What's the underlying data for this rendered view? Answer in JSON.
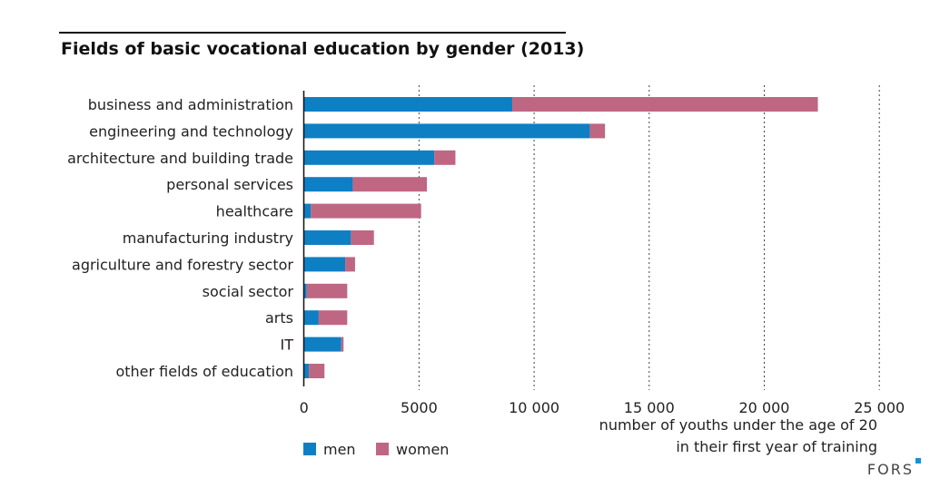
{
  "chart_data": {
    "type": "bar",
    "orientation": "horizontal",
    "stacked": true,
    "title": "Fields of basic vocational education by gender (2013)",
    "xlabel": [
      "number of youths under the age of 20",
      "in their first year of training"
    ],
    "ylabel": "",
    "xlim": [
      0,
      25000
    ],
    "xticks": [
      0,
      5000,
      10000,
      15000,
      20000,
      25000
    ],
    "xtick_labels": [
      "0",
      "5000",
      "10 000",
      "15 000",
      "20 000",
      "25 000"
    ],
    "grid": "vertical dotted",
    "legend_position": "bottom-left",
    "categories": [
      "business and administration",
      "engineering and technology",
      "architecture and building trade",
      "personal services",
      "healthcare",
      "manufacturing industry",
      "agriculture and forestry sector",
      "social sector",
      "arts",
      "IT",
      "other fields of education"
    ],
    "series": [
      {
        "name": "men",
        "color": "#0f7fc4",
        "values": [
          9050,
          12420,
          5660,
          2120,
          300,
          2040,
          1790,
          120,
          640,
          1620,
          220
        ]
      },
      {
        "name": "women",
        "color": "#bf6683",
        "values": [
          13280,
          660,
          920,
          3220,
          4790,
          1000,
          430,
          1760,
          1240,
          100,
          670
        ]
      }
    ]
  },
  "branding": {
    "logo": "FORS"
  }
}
